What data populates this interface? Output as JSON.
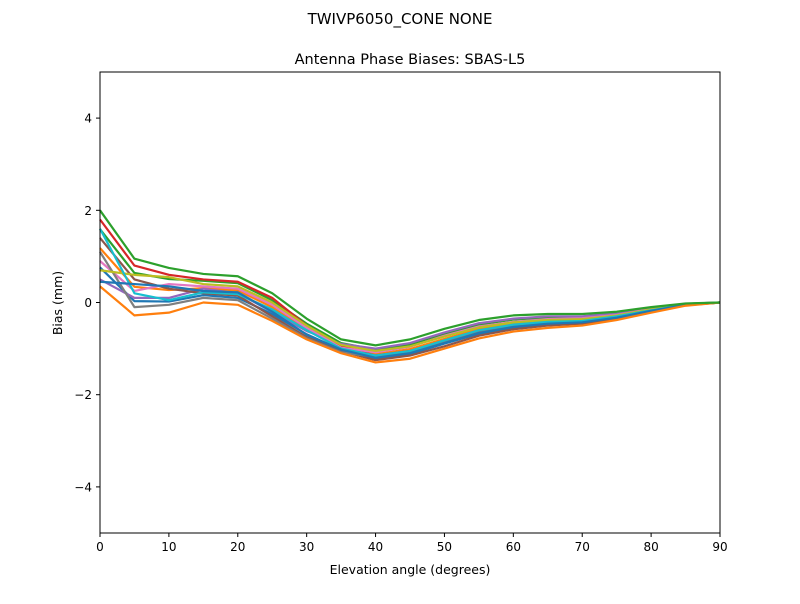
{
  "suptitle": "TWIVP6050_CONE  NONE",
  "chart_data": {
    "type": "line",
    "title": "Antenna Phase Biases: SBAS-L5",
    "xlabel": "Elevation angle (degrees)",
    "ylabel": "Bias (mm)",
    "xlim": [
      0,
      90
    ],
    "ylim": [
      -5,
      5
    ],
    "xticks": [
      0,
      10,
      20,
      30,
      40,
      50,
      60,
      70,
      80,
      90
    ],
    "yticks": [
      -4,
      -2,
      0,
      2,
      4
    ],
    "ytick_labels": [
      "−4",
      "−2",
      "0",
      "2",
      "4"
    ],
    "grid": false,
    "colors": [
      "#1f77b4",
      "#ff7f0e",
      "#2ca02c",
      "#d62728",
      "#9467bd",
      "#8c564b",
      "#e377c2",
      "#7f7f7f",
      "#bcbd22",
      "#17becf"
    ],
    "x": [
      0,
      5,
      10,
      15,
      20,
      25,
      30,
      35,
      40,
      45,
      50,
      55,
      60,
      65,
      70,
      75,
      80,
      85,
      90
    ],
    "series": [
      {
        "values": [
          0.76,
          0.03,
          0.02,
          0.16,
          0.1,
          -0.25,
          -0.69,
          -1.03,
          -1.21,
          -1.12,
          -0.89,
          -0.68,
          -0.54,
          -0.48,
          -0.44,
          -0.34,
          -0.19,
          -0.06,
          0
        ]
      },
      {
        "values": [
          1.18,
          0.34,
          0.27,
          0.31,
          0.26,
          -0.1,
          -0.58,
          -0.95,
          -1.12,
          -1.01,
          -0.79,
          -0.58,
          -0.46,
          -0.4,
          -0.38,
          -0.29,
          -0.16,
          -0.05,
          0
        ]
      },
      {
        "values": [
          1.59,
          0.64,
          0.51,
          0.47,
          0.42,
          0.05,
          -0.46,
          -0.88,
          -1.02,
          -0.91,
          -0.68,
          -0.48,
          -0.37,
          -0.33,
          -0.31,
          -0.25,
          -0.13,
          -0.03,
          0
        ]
      },
      {
        "values": [
          1.8,
          0.8,
          0.6,
          0.5,
          0.45,
          0.1,
          -0.5,
          -0.95,
          -1.15,
          -1.05,
          -0.85,
          -0.65,
          -0.5,
          -0.45,
          -0.42,
          -0.3,
          -0.17,
          -0.05,
          0
        ]
      },
      {
        "values": [
          0.5,
          0.1,
          0.1,
          0.3,
          0.2,
          -0.2,
          -0.62,
          -0.9,
          -1.0,
          -0.88,
          -0.65,
          -0.45,
          -0.35,
          -0.3,
          -0.3,
          -0.23,
          -0.12,
          -0.03,
          0
        ]
      },
      {
        "values": [
          1.4,
          0.5,
          0.3,
          0.2,
          0.15,
          -0.3,
          -0.75,
          -1.05,
          -1.25,
          -1.15,
          -0.95,
          -0.72,
          -0.58,
          -0.5,
          -0.46,
          -0.35,
          -0.2,
          -0.06,
          0
        ]
      },
      {
        "values": [
          0.9,
          0.25,
          0.4,
          0.35,
          0.3,
          -0.05,
          -0.55,
          -0.98,
          -1.08,
          -0.96,
          -0.72,
          -0.52,
          -0.42,
          -0.36,
          -0.34,
          -0.27,
          -0.14,
          -0.04,
          0
        ]
      },
      {
        "values": [
          1.1,
          -0.1,
          -0.05,
          0.1,
          0.05,
          -0.35,
          -0.78,
          -1.08,
          -1.18,
          -1.08,
          -0.84,
          -0.62,
          -0.5,
          -0.43,
          -0.4,
          -0.31,
          -0.18,
          -0.05,
          0
        ]
      },
      {
        "values": [
          0.7,
          0.6,
          0.55,
          0.4,
          0.35,
          0.0,
          -0.5,
          -0.92,
          -1.05,
          -0.95,
          -0.74,
          -0.54,
          -0.43,
          -0.38,
          -0.36,
          -0.28,
          -0.15,
          -0.04,
          0
        ]
      },
      {
        "values": [
          1.6,
          0.2,
          0.05,
          0.22,
          0.18,
          -0.15,
          -0.6,
          -1.0,
          -1.15,
          -1.05,
          -0.82,
          -0.6,
          -0.48,
          -0.42,
          -0.4,
          -0.3,
          -0.17,
          -0.05,
          0
        ]
      },
      {
        "values": [
          0.45,
          0.4,
          0.35,
          0.25,
          0.22,
          -0.2,
          -0.7,
          -1.02,
          -1.2,
          -1.1,
          -0.88,
          -0.66,
          -0.53,
          -0.46,
          -0.43,
          -0.33,
          -0.18,
          -0.05,
          0
        ]
      },
      {
        "values": [
          0.35,
          -0.28,
          -0.22,
          0.0,
          -0.05,
          -0.4,
          -0.8,
          -1.1,
          -1.3,
          -1.22,
          -1.0,
          -0.78,
          -0.63,
          -0.55,
          -0.5,
          -0.38,
          -0.22,
          -0.07,
          0
        ]
      },
      {
        "values": [
          2.0,
          0.95,
          0.75,
          0.62,
          0.57,
          0.2,
          -0.35,
          -0.8,
          -0.93,
          -0.8,
          -0.57,
          -0.38,
          -0.28,
          -0.25,
          -0.25,
          -0.2,
          -0.1,
          -0.02,
          0
        ]
      }
    ]
  }
}
